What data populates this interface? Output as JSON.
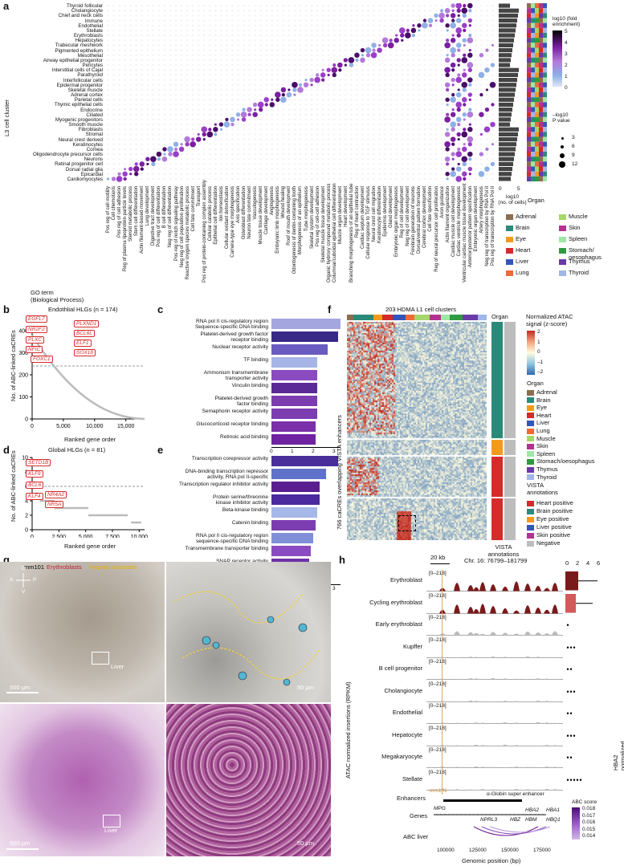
{
  "panels": {
    "a": "a",
    "b": "b",
    "c": "c",
    "d": "d",
    "e": "e",
    "f": "f",
    "g": "g",
    "h": "h"
  },
  "a": {
    "y_title": "L3 cell cluster",
    "x_title": "GO term\n(Biological Process)",
    "cells": [
      "Thyroid follicular",
      "Cholangiocyte",
      "Chief and neck cells",
      "Immune",
      "Endothelial",
      "Stellate",
      "Erythroblasts",
      "Hepatocytes",
      "Trabecular meshwork",
      "Pigmented epithelium",
      "Mesothelial",
      "Airway epithelial progenitor",
      "Pericytes",
      "Interstitial cells of Cajal",
      "Parathyroid",
      "Interfollicular cells",
      "Epidermal progenitor",
      "Skeletal muscle",
      "Adrenal cortex",
      "Parietal cells",
      "Thymic epithelial cells",
      "Endocrine",
      "Ciliated",
      "Myogenic progenitors",
      "Smooth muscle",
      "Fibroblasts",
      "Stromal",
      "Neural crest derived",
      "Keratinocytes",
      "Cornea",
      "Oligodendrocyte precursor cells",
      "Neurons",
      "Retinal progenitor cell",
      "Dorsal radial glia",
      "Epicardial",
      "Cardiomyocytes"
    ],
    "go_terms": [
      "Pos reg of cell motility",
      "Cell chemotaxis",
      "Pos reg of cell adhesion",
      "Reg of plasma lipoprotein particle levels",
      "Steroid metabolic process",
      "Stem cell differentiation",
      "Actin filament-based movement",
      "Lung development",
      "Digestive tract development",
      "Pos reg of cell differentiation",
      "B cell differentiation",
      "Neg reg of cell differentiation",
      "Pos reg of notch signaling pathway",
      "Neg reg of cell population proliferation",
      "Reactive oxygen species metabolic process",
      "Cell fate commitment",
      "Transport",
      "Pos reg of protein-containing complex assembly",
      "Cellular catabolic process",
      "Epithelial cell differentiation",
      "Ion homeostasis",
      "Cellular oxidant detoxification",
      "Camera-type eye morphogenesis",
      "Axis specification",
      "Osteoblast differentiation",
      "Neuron fate commitment",
      "Vasculogenesis",
      "Muscle tissue development",
      "Cartilage development",
      "Angiogenesis",
      "Embryonic limb morphogenesis",
      "Wound healing",
      "Roof of mouth development",
      "Odontogenesis of dentin-containing tooth",
      "Morphogenesis of an epithelium",
      "Tube morphogenesis",
      "Skeletal system development",
      "Pos reg of cell-cell adhesion",
      "Skeletal muscle tissue development",
      "Organic hydroxy compound metabolic process",
      "Columnar/cuboidal epithelial cell differentiation",
      "Muscle organ development",
      "Heart development",
      "Branching morphogenesis of an epithelial tube",
      "Reg of heart contraction",
      "Cardiac septum development",
      "Cellular response to TGF stimulus",
      "Neural crest cell migration",
      "Keratinocyte differentiation",
      "Epidermis development",
      "Gland development",
      "Embryonic organ morphogenesis",
      "Reg of cell development",
      "Neg reg of cell development",
      "Forebrain generation of neurons",
      "Dorsal/ventral pattern formation",
      "Cerebral cortex development",
      "Cell fate specification",
      "Reg of neural precursor cell proliferation",
      "Axon guidance",
      "Actin filament organization",
      "Cardiac muscle cell development",
      "Cardiac ventricle morphogenesis",
      "Ventricular cardiac muscle tissue development",
      "Anterior/posterior pattern specification",
      "Embryonic organ development",
      "Artery morphogenesis",
      "Neg reg of transcription by RNA Pol II",
      "Pos reg of transcription by RNA Pol II"
    ],
    "bar_axis_title": "log10\n(no. of cells)",
    "bar_ticks": [
      "0",
      "5"
    ],
    "organ_col_title": "Organ",
    "fold_title": "log10 (fold\nenrichment)",
    "fold_ticks": [
      "5",
      "4",
      "3",
      "2",
      "1",
      "0"
    ],
    "p_title": "–log10\nP value",
    "p_ticks": [
      "3",
      "6",
      "9",
      "12"
    ],
    "organ_legend": [
      {
        "name": "Adrenal",
        "color": "#8c6d4f"
      },
      {
        "name": "Muscle",
        "color": "#a4d86a"
      },
      {
        "name": "Brain",
        "color": "#2a8a7a"
      },
      {
        "name": "Skin",
        "color": "#b2338f"
      },
      {
        "name": "Eye",
        "color": "#f39a1d"
      },
      {
        "name": "Spleen",
        "color": "#9fe7a7"
      },
      {
        "name": "Heart",
        "color": "#d42b2b"
      },
      {
        "name": "Stomach/\noesophagus",
        "color": "#2f9a41"
      },
      {
        "name": "Liver",
        "color": "#3355b8"
      },
      {
        "name": "Thymus",
        "color": "#6a3aa8"
      },
      {
        "name": "Lung",
        "color": "#ee6a37"
      },
      {
        "name": "Thyroid",
        "color": "#a0b6e6"
      }
    ]
  },
  "b": {
    "title": "Endothlial HLGs (n = 174)",
    "ylabel": "No. of ABC-linked caCREs",
    "xlabel": "Ranked gene order",
    "y_ticks": [
      "0",
      "100",
      "200",
      "300",
      "400"
    ],
    "x_ticks": [
      "0",
      "5,000",
      "10,000",
      "15,000"
    ],
    "genes": [
      "EGFL7",
      "NR2F2",
      "PLXND1",
      "BCL6L",
      "PLXC",
      "ELF1",
      "NFIC",
      "SOX18",
      "FOXC1"
    ]
  },
  "c": {
    "terms": [
      "RNA pol II cis-regulatory region\nSequence-specific DNA binding",
      "Platelet-derived growth factor\nreceptor binding",
      "Nuclear receptor activity",
      "TF binding",
      "Ammonium transmembrane\ntransporter activity",
      "Vinculin binding",
      "Platelet-derived growth\nfactor binding",
      "Semaphorin receptor activity",
      "Glucocorticoid receptor binding",
      "Retinoic acid binding"
    ],
    "values": [
      3.3,
      3.2,
      2.7,
      2.2,
      2.2,
      2.2,
      2.2,
      2.2,
      2.1,
      2.1
    ],
    "colors": [
      "#a4a6e0",
      "#3a2a88",
      "#6a5bc0",
      "#a7b5e6",
      "#8a4bc0",
      "#5b2a96",
      "#7b3db0",
      "#7b3db0",
      "#7a30a8",
      "#6f23a0"
    ],
    "xlabel": "–log10(P value)",
    "x_ticks": [
      "0",
      "1",
      "2",
      "3"
    ]
  },
  "d": {
    "title": "Global HLGs (n = 81)",
    "ylabel": "No. of ABC-linked caCREs",
    "xlabel": "Ranked gene order",
    "y_ticks": [
      "0",
      "2",
      "4",
      "6",
      "8",
      "10"
    ],
    "x_ticks": [
      "0",
      "2,500",
      "5,000",
      "7,500",
      "10,000"
    ],
    "genes": [
      "SETD1B",
      "KLF9",
      "BCL6",
      "NR4A2",
      "KLF4",
      "NR5A"
    ]
  },
  "e": {
    "terms": [
      "Transcription corepressor activity",
      "DNA-binding transcription repressor\nactivity, RNA pol II-specific",
      "Transcription regulator inhibitor activity",
      "Protein serine/threonine\nkinase inhibitor activity",
      "Beta-kinase binding",
      "Catenin binding",
      "RNA pol II cis-regulatory region\nsequence-specific DNA binding",
      "Transmembrane transporter binding",
      "SNAP receptor activity",
      "Nuclear receptor activity"
    ],
    "values": [
      3.2,
      2.6,
      2.3,
      2.3,
      2.2,
      2.1,
      2.0,
      1.9,
      1.8,
      1.8
    ],
    "colors": [
      "#4a2f9a",
      "#5d72c8",
      "#5a1e90",
      "#4b2aa0",
      "#a6b8e8",
      "#7b3db0",
      "#8090d8",
      "#8a4bc0",
      "#6f2fa8",
      "#9b4fd0"
    ],
    "xlabel": "–log10(P value)",
    "x_ticks": [
      "0",
      "1",
      "2",
      "3"
    ]
  },
  "f": {
    "title": "203 HDMA L1 cell clusters",
    "organ_col": "Organ",
    "ylabel": "766 caCREs overlapping VISTA enhancers",
    "vista_col": "VISTA\nannotations",
    "scale_title": "Normalized ATAC\nsignal (z-score)",
    "scale_ticks": [
      "2",
      "1",
      "0",
      "–1",
      "–2"
    ],
    "organ_title": "Organ",
    "organs": [
      {
        "name": "Adrenal",
        "color": "#8c6d4f"
      },
      {
        "name": "Brain",
        "color": "#2a8a7a"
      },
      {
        "name": "Eye",
        "color": "#f39a1d"
      },
      {
        "name": "Heart",
        "color": "#d42b2b"
      },
      {
        "name": "Liver",
        "color": "#3355b8"
      },
      {
        "name": "Lung",
        "color": "#ee6a37"
      },
      {
        "name": "Muscle",
        "color": "#a4d86a"
      },
      {
        "name": "Skin",
        "color": "#b2338f"
      },
      {
        "name": "Spleen",
        "color": "#9fe7a7"
      },
      {
        "name": "Stomach/oesophagus",
        "color": "#2f9a41"
      },
      {
        "name": "Thymus",
        "color": "#6a3aa8"
      },
      {
        "name": "Thyroid",
        "color": "#a0b6e6"
      }
    ],
    "vista_title": "VISTA\nannotations",
    "vista": [
      {
        "name": "Heart positive",
        "color": "#d42b2b"
      },
      {
        "name": "Brain positive",
        "color": "#2a8a7a"
      },
      {
        "name": "Eye positive",
        "color": "#f39a1d"
      },
      {
        "name": "Liver positive",
        "color": "#3355b8"
      },
      {
        "name": "Skin positive",
        "color": "#b2338f"
      },
      {
        "name": "Negative",
        "color": "#bdbdbd"
      }
    ]
  },
  "g": {
    "sample": "mm101",
    "stain1": "Erythroblasts",
    "stain2": "Hepatic sinusoids",
    "liver": "Liver",
    "scale1": "500 μm",
    "scale2": "50 μm",
    "compass": {
      "d": "D",
      "a": "A",
      "p": "P",
      "v": "V"
    }
  },
  "h": {
    "scalebar": "20 kb",
    "locus": "Chr. 16: 76799–181799",
    "range": "[0–218]",
    "tracks": [
      "Erythroblast",
      "Cycling erythroblast",
      "Early erythroblast",
      "Kupffer",
      "B cell progenitor",
      "Cholangiocyte",
      "Endothelial",
      "Hepatocyte",
      "Megakaryocyte",
      "Stellate"
    ],
    "ylabel": "ATAC normalized insertions (RPKM)",
    "expr_label": "HBA2 normalized expression (LogNorm)",
    "expr_ticks": [
      "0",
      "2",
      "4",
      "6"
    ],
    "enhancers": "Enhancers",
    "mm101": "mm101",
    "super": "α-Globin super enhancer",
    "genes_row": "Genes",
    "genes": {
      "mpg": "MPG",
      "nprl3": "NPRL3",
      "hbz": "HBZ",
      "hbm": "HBM",
      "hba2": "HBA2",
      "hba1": "HBA1",
      "hbq1": "HBQ1"
    },
    "abc_row": "ABC liver",
    "abc_title": "ABC score",
    "abc_ticks": [
      "0.018",
      "0.017",
      "0.016",
      "0.015",
      "0.014"
    ],
    "x_ticks": [
      "100000",
      "125000",
      "150000",
      "175000"
    ],
    "xlabel": "Genomic position (bp)"
  }
}
